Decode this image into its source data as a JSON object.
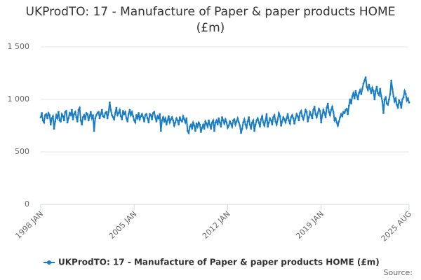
{
  "chart_data": {
    "type": "line",
    "title": "UKProdTO: 17 - Manufacture of Paper & paper products HOME (£m)",
    "source": "Source:",
    "categories": [
      "1998 JAN",
      null,
      null,
      null,
      null,
      null,
      null,
      null,
      null,
      null,
      null,
      null,
      null,
      null,
      null,
      null,
      null,
      null,
      null,
      null,
      null,
      null,
      null,
      null,
      null,
      null,
      null,
      null,
      null,
      null,
      null,
      null,
      null,
      null,
      null,
      null,
      null,
      null,
      null,
      null,
      null,
      null,
      null,
      null,
      null,
      null,
      null,
      null,
      null,
      null,
      null,
      null,
      null,
      null,
      null,
      null,
      null,
      null,
      null,
      null,
      null,
      null,
      null,
      null,
      null,
      null,
      null,
      null,
      null,
      null,
      null,
      null,
      null,
      null,
      null,
      null,
      null,
      null,
      null,
      null,
      null,
      null,
      null,
      null,
      "2005 JAN",
      null,
      null,
      null,
      null,
      null,
      null,
      null,
      null,
      null,
      null,
      null,
      null,
      null,
      null,
      null,
      null,
      null,
      null,
      null,
      null,
      null,
      null,
      null,
      null,
      null,
      null,
      null,
      null,
      null,
      null,
      null,
      null,
      null,
      null,
      null,
      null,
      null,
      null,
      null,
      null,
      null,
      null,
      null,
      null,
      null,
      null,
      null,
      null,
      null,
      null,
      null,
      null,
      null,
      null,
      null,
      null,
      null,
      null,
      null,
      null,
      null,
      null,
      null,
      null,
      null,
      null,
      null,
      null,
      null,
      null,
      null,
      null,
      null,
      null,
      null,
      null,
      null,
      null,
      null,
      null,
      null,
      null,
      null,
      "2012 JAN",
      null,
      null,
      null,
      null,
      null,
      null,
      null,
      null,
      null,
      null,
      null,
      null,
      null,
      null,
      null,
      null,
      null,
      null,
      null,
      null,
      null,
      null,
      null,
      null,
      null,
      null,
      null,
      null,
      null,
      null,
      null,
      null,
      null,
      null,
      null,
      null,
      null,
      null,
      null,
      null,
      null,
      null,
      null,
      null,
      null,
      null,
      null,
      null,
      null,
      null,
      null,
      null,
      null,
      null,
      null,
      null,
      null,
      null,
      null,
      null,
      null,
      null,
      null,
      null,
      null,
      null,
      null,
      null,
      null,
      null,
      null,
      null,
      null,
      null,
      null,
      null,
      null,
      null,
      null,
      null,
      null,
      null,
      null,
      "2019 JAN",
      null,
      null,
      null,
      null,
      null,
      null,
      null,
      null,
      null,
      null,
      null,
      null,
      null,
      null,
      null,
      null,
      null,
      null,
      null,
      null,
      null,
      null,
      null,
      null,
      null,
      null,
      null,
      null,
      null,
      null,
      null,
      null,
      null,
      null,
      null,
      null,
      null,
      null,
      null,
      null,
      null,
      null,
      null,
      null,
      null,
      null,
      null,
      null,
      null,
      null,
      null,
      null,
      null,
      null,
      null,
      null,
      null,
      null,
      null,
      null,
      null,
      null,
      null,
      null,
      null,
      null,
      null,
      null,
      null,
      null,
      null,
      null,
      null,
      null,
      null,
      null,
      null,
      null,
      "2025 AUG"
    ],
    "series": [
      {
        "name": "UKProdTO: 17 - Manufacture of Paper & paper products HOME (£m)",
        "color": "#1a7dc4",
        "values": [
          830,
          870,
          800,
          780,
          850,
          860,
          820,
          870,
          850,
          760,
          820,
          840,
          720,
          790,
          850,
          820,
          880,
          800,
          790,
          860,
          840,
          800,
          880,
          890,
          780,
          820,
          870,
          850,
          900,
          810,
          860,
          880,
          830,
          790,
          900,
          920,
          800,
          760,
          830,
          850,
          810,
          870,
          860,
          800,
          840,
          880,
          820,
          850,
          700,
          820,
          850,
          870,
          880,
          820,
          860,
          900,
          840,
          830,
          870,
          880,
          820,
          880,
          970,
          900,
          850,
          830,
          810,
          870,
          920,
          850,
          870,
          900,
          840,
          810,
          890,
          860,
          880,
          820,
          790,
          860,
          900,
          850,
          880,
          840,
          800,
          780,
          850,
          820,
          870,
          810,
          840,
          860,
          830,
          790,
          850,
          860,
          820,
          780,
          860,
          850,
          810,
          870,
          880,
          830,
          790,
          840,
          820,
          860,
          700,
          800,
          830,
          790,
          820,
          760,
          800,
          840,
          780,
          810,
          830,
          800,
          750,
          780,
          820,
          800,
          760,
          830,
          800,
          790,
          840,
          810,
          780,
          820,
          700,
          680,
          740,
          760,
          720,
          780,
          750,
          700,
          770,
          740,
          780,
          760,
          690,
          730,
          760,
          720,
          790,
          770,
          740,
          800,
          760,
          720,
          780,
          800,
          700,
          780,
          800,
          760,
          820,
          780,
          740,
          830,
          800,
          770,
          810,
          780,
          730,
          750,
          790,
          770,
          740,
          800,
          810,
          760,
          790,
          820,
          780,
          750,
          680,
          720,
          780,
          810,
          760,
          730,
          790,
          830,
          760,
          720,
          780,
          800,
          700,
          760,
          800,
          820,
          780,
          740,
          810,
          840,
          780,
          750,
          800,
          860,
          740,
          780,
          820,
          800,
          760,
          830,
          850,
          790,
          760,
          810,
          870,
          840,
          750,
          790,
          830,
          810,
          780,
          820,
          860,
          800,
          770,
          830,
          850,
          820,
          770,
          820,
          860,
          840,
          800,
          870,
          890,
          840,
          810,
          850,
          900,
          880,
          790,
          830,
          880,
          850,
          820,
          900,
          930,
          860,
          830,
          870,
          910,
          890,
          780,
          850,
          900,
          870,
          830,
          920,
          960,
          880,
          850,
          900,
          930,
          880,
          800,
          820,
          780,
          750,
          790,
          830,
          860,
          840,
          880,
          870,
          900,
          910,
          860,
          940,
          1000,
          960,
          1030,
          1060,
          1010,
          1080,
          1040,
          1000,
          1060,
          1090,
          1050,
          1100,
          1150,
          1180,
          1210,
          1120,
          1090,
          1140,
          1100,
          1060,
          1110,
          1080,
          1000,
          1080,
          1120,
          1060,
          1040,
          1100,
          1030,
          980,
          870,
          1000,
          1020,
          960,
          950,
          1000,
          1050,
          1180,
          1100,
          1030,
          980,
          1010,
          950,
          920,
          990,
          970,
          920,
          1000,
          1020,
          1080,
          1050,
          990,
          1010,
          970
        ]
      }
    ],
    "ylim": [
      0,
      1500
    ],
    "yticks": [
      0,
      500,
      {
        "value": 1000,
        "label": "1 000"
      },
      {
        "value": 1500,
        "label": "1 500"
      }
    ],
    "grid": true
  }
}
